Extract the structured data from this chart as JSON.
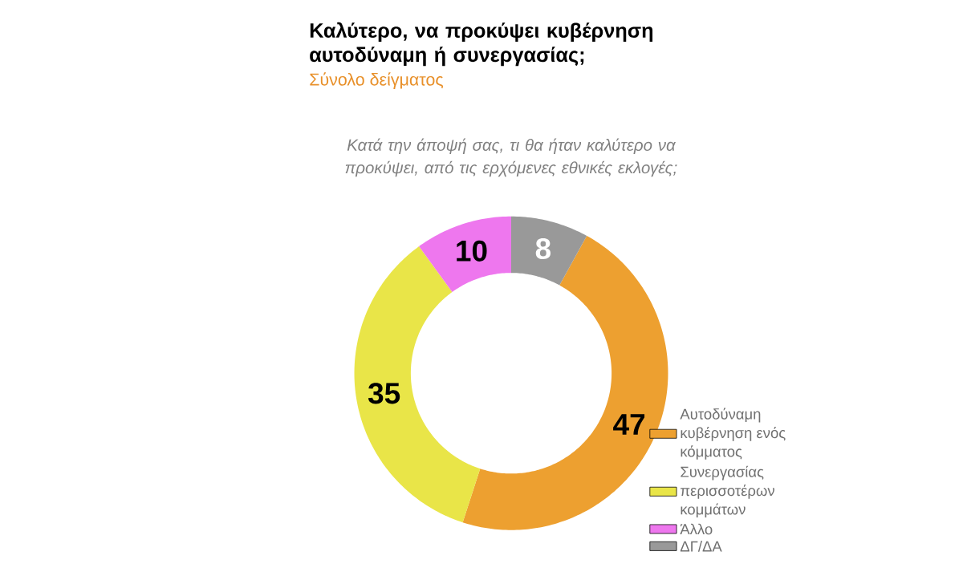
{
  "chart_data": {
    "type": "donut",
    "title": "Καλύτερο, να προκύψει κυβέρνηση αυτοδύναμη ή συνεργασίας;",
    "subtitle": "Σύνολο δείγματος",
    "annotations": [
      "Κατά την άποψή σας, τι θα ήταν καλύτερο να προκύψει, από τις ερχόμενες εθνικές εκλογές;"
    ],
    "categories": [
      "Αυτοδύναμη κυβέρνηση ενός κόμματος",
      "Συνεργασίας περισσοτέρων κομμάτων",
      "Άλλο",
      "ΔΓ/ΔΑ"
    ],
    "values": [
      47,
      35,
      10,
      8
    ],
    "colors": [
      "#eda030",
      "#e9e548",
      "#ee77ee",
      "#999999"
    ],
    "data_labels": true,
    "legend": "bottom right"
  }
}
